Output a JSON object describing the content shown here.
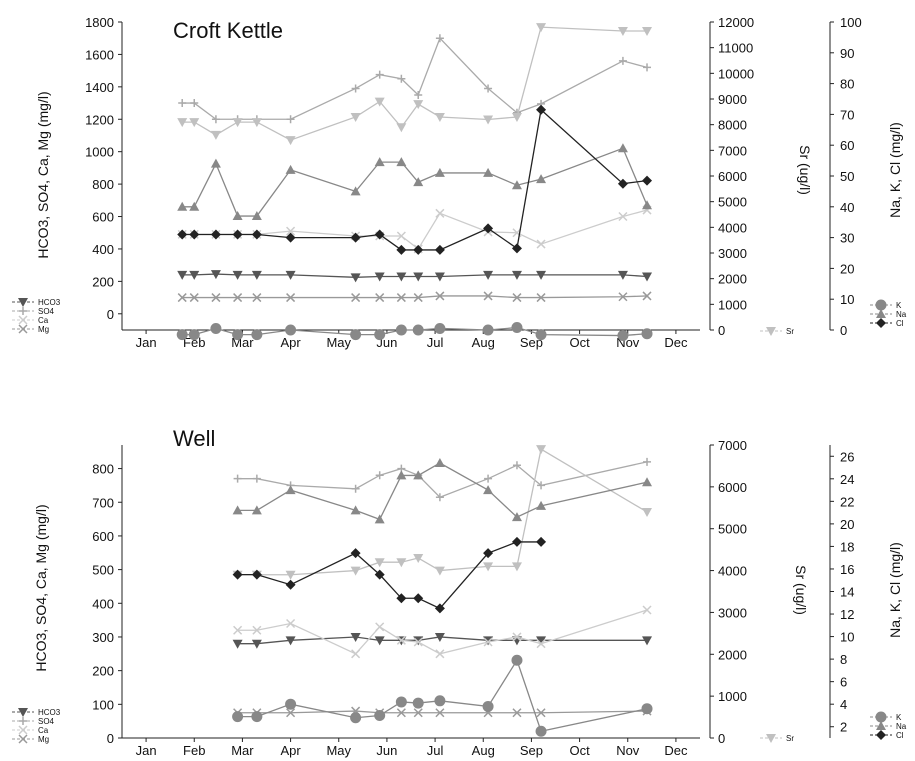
{
  "chart_data": [
    {
      "type": "line",
      "title": "Croft Kettle",
      "x_ticks": [
        "Jan",
        "Feb",
        "Mar",
        "Apr",
        "May",
        "Jun",
        "Jul",
        "Aug",
        "Sep",
        "Oct",
        "Nov",
        "Dec"
      ],
      "ylabel_left": "HCO3, SO4, Ca, Mg (mg/l)",
      "ylabel_mid": "Sr (ug/l)",
      "ylabel_right": "Na, K, Cl (mg/l)",
      "yticks_left": [
        "0",
        "200",
        "400",
        "600",
        "800",
        "1000",
        "1200",
        "1400",
        "1600",
        "1800"
      ],
      "yticks_mid": [
        "0",
        "1000",
        "2000",
        "3000",
        "4000",
        "5000",
        "6000",
        "7000",
        "8000",
        "9000",
        "10000",
        "11000",
        "12000"
      ],
      "yticks_right": [
        "0",
        "10",
        "20",
        "30",
        "40",
        "50",
        "60",
        "70",
        "80",
        "90",
        "100"
      ],
      "ylim_left": [
        -100,
        1800
      ],
      "ylim_mid": [
        0,
        12000
      ],
      "ylim_right": [
        0,
        100
      ],
      "legend_left": [
        "HCO3",
        "SO4",
        "Ca",
        "Mg"
      ],
      "legend_mid": [
        "Sr"
      ],
      "legend_right": [
        "K",
        "Na",
        "Cl"
      ],
      "series": [
        {
          "name": "HCO3",
          "axis": "left",
          "color": "#555555",
          "marker": "tri-down",
          "x": [
            1.75,
            2.0,
            2.45,
            2.9,
            3.3,
            4.0,
            5.35,
            5.85,
            6.3,
            6.65,
            7.1,
            8.1,
            8.7,
            9.2,
            10.9,
            11.4
          ],
          "y": [
            240,
            240,
            245,
            240,
            240,
            240,
            225,
            230,
            230,
            230,
            230,
            240,
            240,
            240,
            240,
            230
          ]
        },
        {
          "name": "SO4",
          "axis": "left",
          "color": "#aaaaaa",
          "marker": "plus",
          "x": [
            1.75,
            2.0,
            2.45,
            2.9,
            3.3,
            4.0,
            5.35,
            5.85,
            6.3,
            6.65,
            7.1,
            8.1,
            8.7,
            9.2,
            10.9,
            11.4
          ],
          "y": [
            1300,
            1300,
            1200,
            1200,
            1200,
            1200,
            1390,
            1475,
            1450,
            1350,
            1700,
            1390,
            1240,
            1295,
            1560,
            1520
          ]
        },
        {
          "name": "Ca",
          "axis": "left",
          "color": "#cccccc",
          "marker": "x",
          "x": [
            1.75,
            2.0,
            2.45,
            2.9,
            3.3,
            4.0,
            5.35,
            5.85,
            6.3,
            6.65,
            7.1,
            8.1,
            8.7,
            9.2,
            10.9,
            11.4
          ],
          "y": [
            490,
            490,
            490,
            490,
            490,
            510,
            480,
            480,
            480,
            400,
            620,
            505,
            500,
            430,
            600,
            640
          ]
        },
        {
          "name": "Mg",
          "axis": "left",
          "color": "#999999",
          "marker": "x",
          "x": [
            1.75,
            2.0,
            2.45,
            2.9,
            3.3,
            4.0,
            5.35,
            5.85,
            6.3,
            6.65,
            7.1,
            8.1,
            8.7,
            9.2,
            10.9,
            11.4
          ],
          "y": [
            100,
            100,
            100,
            100,
            100,
            100,
            100,
            100,
            100,
            100,
            110,
            110,
            100,
            100,
            105,
            110
          ]
        },
        {
          "name": "Sr",
          "axis": "mid",
          "color": "#c0c0c0",
          "marker": "tri-down",
          "x": [
            1.75,
            2.0,
            2.45,
            2.9,
            3.3,
            4.0,
            5.35,
            5.85,
            6.3,
            6.65,
            7.1,
            8.1,
            8.7,
            9.2,
            10.9,
            11.4
          ],
          "y": [
            8100,
            8100,
            7600,
            8100,
            8100,
            7400,
            8300,
            8900,
            7900,
            8800,
            8300,
            8200,
            8300,
            11800,
            11650,
            11650
          ]
        },
        {
          "name": "K",
          "axis": "right",
          "color": "#888888",
          "marker": "circle",
          "x": [
            1.75,
            2.0,
            2.45,
            2.9,
            3.3,
            4.0,
            5.35,
            5.85,
            6.3,
            6.65,
            7.1,
            8.1,
            8.7,
            9.2,
            10.9,
            11.4
          ],
          "y": [
            -1.5,
            -1.5,
            0.5,
            -1.5,
            -1.5,
            0,
            -1.5,
            -1.5,
            0,
            0,
            0.5,
            0,
            0.8,
            -1.5,
            -1.8,
            -1.2
          ]
        },
        {
          "name": "Na",
          "axis": "right",
          "color": "#888888",
          "marker": "tri-up",
          "x": [
            1.75,
            2.0,
            2.45,
            2.9,
            3.3,
            4.0,
            5.35,
            5.85,
            6.3,
            6.65,
            7.1,
            8.1,
            8.7,
            9.2,
            10.9,
            11.4
          ],
          "y": [
            40,
            40,
            54,
            37,
            37,
            52,
            45,
            54.5,
            54.5,
            48,
            51,
            51,
            47,
            49,
            59,
            40.5
          ]
        },
        {
          "name": "Cl",
          "axis": "right",
          "color": "#222222",
          "marker": "diamond",
          "x": [
            1.75,
            2.0,
            2.45,
            2.9,
            3.3,
            4.0,
            5.35,
            5.85,
            6.3,
            6.65,
            7.1,
            8.1,
            8.7,
            9.2,
            10.9,
            11.4
          ],
          "y": [
            31,
            31,
            31,
            31,
            31,
            30,
            30,
            31,
            26,
            26,
            26,
            33,
            26.5,
            71.5,
            47.5,
            48.5
          ]
        }
      ]
    },
    {
      "type": "line",
      "title": "Well",
      "x_ticks": [
        "Jan",
        "Feb",
        "Mar",
        "Apr",
        "May",
        "Jun",
        "Jul",
        "Aug",
        "Sep",
        "Oct",
        "Nov",
        "Dec"
      ],
      "ylabel_left": "HCO3, SO4, Ca, Mg (mg/l)",
      "ylabel_mid": "Sr (ug/l)",
      "ylabel_right": "Na, K, Cl (mg/l)",
      "yticks_left": [
        "0",
        "100",
        "200",
        "300",
        "400",
        "500",
        "600",
        "700",
        "800"
      ],
      "yticks_mid": [
        "0",
        "1000",
        "2000",
        "3000",
        "4000",
        "5000",
        "6000",
        "7000"
      ],
      "yticks_right": [
        "2",
        "4",
        "6",
        "8",
        "10",
        "12",
        "14",
        "16",
        "18",
        "20",
        "22",
        "24",
        "26"
      ],
      "ylim_left": [
        0,
        870
      ],
      "ylim_mid": [
        0,
        7000
      ],
      "ylim_right": [
        1,
        27
      ],
      "legend_left": [
        "HCO3",
        "SO4",
        "Ca",
        "Mg"
      ],
      "legend_mid": [
        "Sr"
      ],
      "legend_right": [
        "K",
        "Na",
        "Cl"
      ],
      "series": [
        {
          "name": "HCO3",
          "axis": "left",
          "color": "#555555",
          "marker": "tri-down",
          "x": [
            2.9,
            3.3,
            4.0,
            5.35,
            5.85,
            6.3,
            6.65,
            7.1,
            8.1,
            8.7,
            9.2,
            11.4
          ],
          "y": [
            280,
            280,
            290,
            300,
            290,
            290,
            290,
            300,
            290,
            290,
            290,
            290
          ]
        },
        {
          "name": "SO4",
          "axis": "left",
          "color": "#aaaaaa",
          "marker": "plus",
          "x": [
            2.9,
            3.3,
            4.0,
            5.35,
            5.85,
            6.3,
            6.65,
            7.1,
            8.1,
            8.7,
            9.2,
            11.4
          ],
          "y": [
            770,
            770,
            750,
            740,
            780,
            800,
            780,
            715,
            770,
            810,
            750,
            820
          ]
        },
        {
          "name": "Ca",
          "axis": "left",
          "color": "#cccccc",
          "marker": "x",
          "x": [
            2.9,
            3.3,
            4.0,
            5.35,
            5.85,
            6.3,
            6.65,
            7.1,
            8.1,
            8.7,
            9.2,
            11.4
          ],
          "y": [
            320,
            320,
            340,
            250,
            330,
            290,
            285,
            250,
            285,
            300,
            280,
            380
          ]
        },
        {
          "name": "Mg",
          "axis": "left",
          "color": "#999999",
          "marker": "x",
          "x": [
            2.9,
            3.3,
            4.0,
            5.35,
            5.85,
            6.3,
            6.65,
            7.1,
            8.1,
            8.7,
            9.2,
            11.4
          ],
          "y": [
            75,
            75,
            75,
            80,
            75,
            75,
            75,
            75,
            75,
            75,
            75,
            80
          ]
        },
        {
          "name": "Sr",
          "axis": "mid",
          "color": "#c0c0c0",
          "marker": "tri-down",
          "x": [
            2.9,
            3.3,
            4.0,
            5.35,
            5.85,
            6.3,
            6.65,
            7.1,
            8.1,
            8.7,
            9.2,
            11.4
          ],
          "y": [
            3900,
            3900,
            3900,
            4000,
            4200,
            4200,
            4300,
            4000,
            4100,
            4100,
            6900,
            5400
          ]
        },
        {
          "name": "K",
          "axis": "right",
          "color": "#888888",
          "marker": "circle",
          "x": [
            2.9,
            3.3,
            4.0,
            5.35,
            5.85,
            6.3,
            6.65,
            7.1,
            8.1,
            8.7,
            9.2,
            11.4
          ],
          "y": [
            2.9,
            2.9,
            4,
            2.8,
            3,
            4.2,
            4.1,
            4.3,
            3.8,
            7.9,
            1.6,
            3.6
          ]
        },
        {
          "name": "Na",
          "axis": "right",
          "color": "#888888",
          "marker": "tri-up",
          "x": [
            2.9,
            3.3,
            4.0,
            5.35,
            5.85,
            6.3,
            6.65,
            7.1,
            8.1,
            8.7,
            9.2,
            11.4
          ],
          "y": [
            21.2,
            21.2,
            23,
            21.2,
            20.4,
            24.3,
            24.3,
            25.4,
            23,
            20.6,
            21.6,
            23.7
          ]
        },
        {
          "name": "Cl",
          "axis": "right",
          "color": "#222222",
          "marker": "diamond",
          "x": [
            2.9,
            3.3,
            4.0,
            5.35,
            5.85,
            6.3,
            6.65,
            7.1,
            8.1,
            8.7,
            9.2
          ],
          "y": [
            15.5,
            15.5,
            14.6,
            17.4,
            15.5,
            13.4,
            13.4,
            12.5,
            17.4,
            18.4,
            18.4
          ]
        }
      ]
    }
  ]
}
